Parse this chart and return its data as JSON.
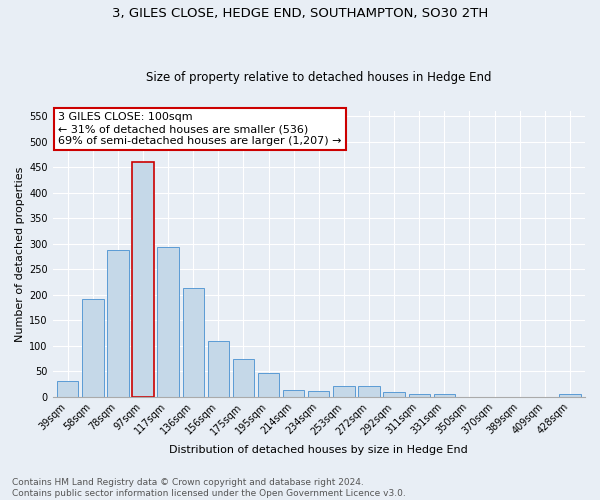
{
  "title": "3, GILES CLOSE, HEDGE END, SOUTHAMPTON, SO30 2TH",
  "subtitle": "Size of property relative to detached houses in Hedge End",
  "xlabel": "Distribution of detached houses by size in Hedge End",
  "ylabel": "Number of detached properties",
  "categories": [
    "39sqm",
    "58sqm",
    "78sqm",
    "97sqm",
    "117sqm",
    "136sqm",
    "156sqm",
    "175sqm",
    "195sqm",
    "214sqm",
    "234sqm",
    "253sqm",
    "272sqm",
    "292sqm",
    "311sqm",
    "331sqm",
    "350sqm",
    "370sqm",
    "389sqm",
    "409sqm",
    "428sqm"
  ],
  "values": [
    30,
    191,
    287,
    460,
    293,
    213,
    109,
    75,
    46,
    14,
    12,
    22,
    22,
    9,
    6,
    5,
    0,
    0,
    0,
    0,
    5
  ],
  "bar_color": "#c5d8e8",
  "bar_edge_color": "#5b9bd5",
  "highlight_bar_index": 3,
  "highlight_bar_edge_color": "#cc0000",
  "annotation_text": "3 GILES CLOSE: 100sqm\n← 31% of detached houses are smaller (536)\n69% of semi-detached houses are larger (1,207) →",
  "annotation_box_color": "#ffffff",
  "annotation_box_edge_color": "#cc0000",
  "ylim": [
    0,
    560
  ],
  "yticks": [
    0,
    50,
    100,
    150,
    200,
    250,
    300,
    350,
    400,
    450,
    500,
    550
  ],
  "fig_bg_color": "#e8eef5",
  "plot_bg_color": "#e8eef5",
  "footer_line1": "Contains HM Land Registry data © Crown copyright and database right 2024.",
  "footer_line2": "Contains public sector information licensed under the Open Government Licence v3.0.",
  "title_fontsize": 9.5,
  "subtitle_fontsize": 8.5,
  "xlabel_fontsize": 8,
  "ylabel_fontsize": 8,
  "tick_fontsize": 7,
  "annotation_fontsize": 8,
  "footer_fontsize": 6.5
}
